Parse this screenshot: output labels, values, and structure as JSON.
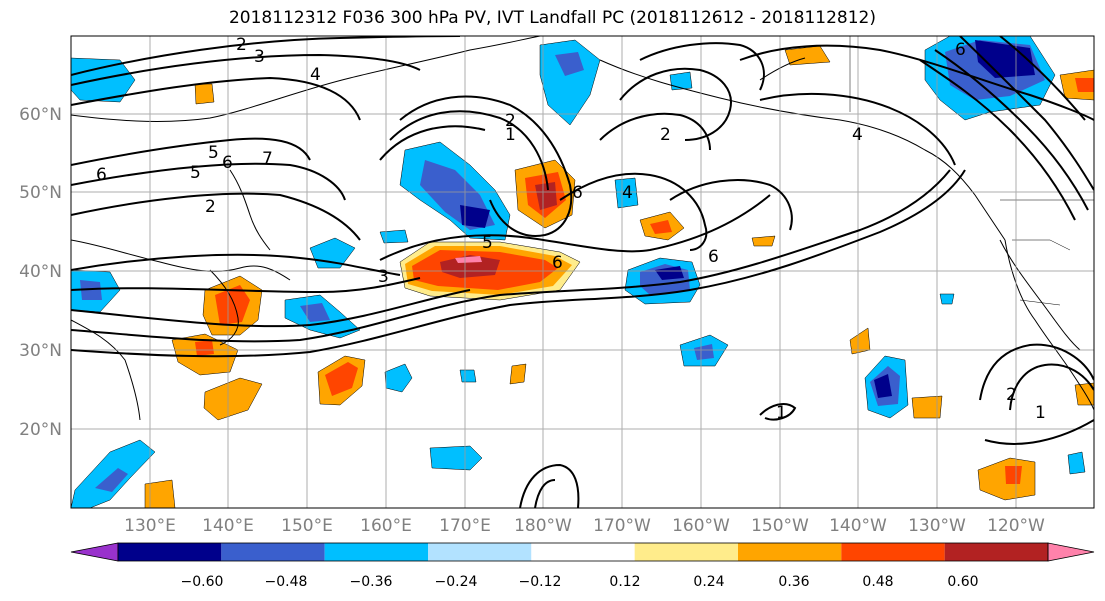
{
  "title": "2018112312 F036 300 hPa PV, IVT Landfall PC (2018112612 - 2018112812)",
  "lat_labels": [
    "60°N",
    "50°N",
    "40°N",
    "30°N",
    "20°N"
  ],
  "lon_labels": [
    "130°E",
    "140°E",
    "150°E",
    "160°E",
    "170°E",
    "180°W",
    "170°W",
    "160°W",
    "150°W",
    "140°W",
    "130°W",
    "120°W"
  ],
  "colorbar": {
    "tick_labels": [
      "−0.60",
      "−0.48",
      "−0.36",
      "−0.24",
      "−0.12",
      "0.12",
      "0.24",
      "0.36",
      "0.48",
      "0.60"
    ],
    "colors": [
      "#9932CC",
      "#00008B",
      "#3A5FCD",
      "#00BFFF",
      "#B2E2FF",
      "#FFFFFF",
      "#FFEC8B",
      "#FFA500",
      "#FF4500",
      "#B22222",
      "#FF82AB"
    ]
  },
  "contour_labels": [
    "2",
    "3",
    "4",
    "5",
    "6",
    "7",
    "6",
    "5",
    "2",
    "1",
    "2",
    "3",
    "5",
    "6",
    "6",
    "4",
    "2",
    "6",
    "4",
    "6",
    "1",
    "2",
    "1"
  ],
  "colors": {
    "contour": "#000000",
    "coast": "#000000",
    "grid": "#9a9a9a"
  }
}
